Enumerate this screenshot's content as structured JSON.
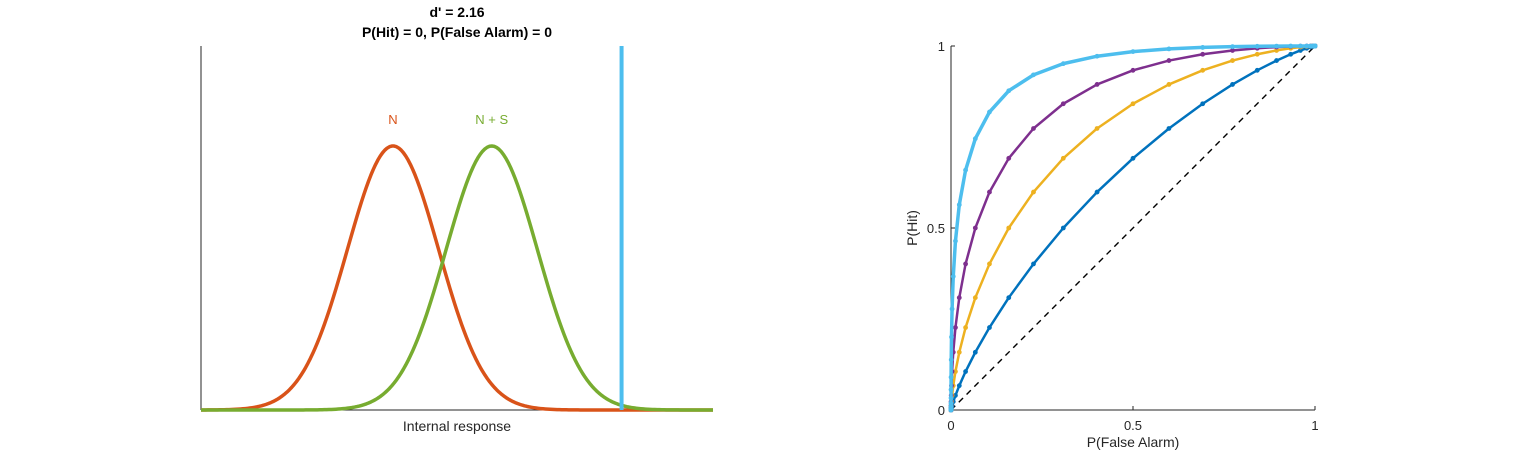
{
  "chart_data": [
    {
      "type": "line",
      "title": "d' =  2.16",
      "subtitle": "P(Hit) = 0, P(False Alarm) = 0",
      "xlabel": "Internal response",
      "ylabel": "",
      "ticks_visible": false,
      "criterion": {
        "x": 5.0,
        "color": "#4DBEEE"
      },
      "series": [
        {
          "name": "N",
          "mean": 0.0,
          "sd": 1.0,
          "color": "#D95319"
        },
        {
          "name": "N + S",
          "mean": 2.16,
          "sd": 1.0,
          "color": "#77AC30"
        }
      ],
      "xlim": [
        -4.2,
        7.0
      ],
      "ylim": [
        0,
        0.55
      ]
    },
    {
      "type": "line",
      "title": "",
      "xlabel": "P(False Alarm)",
      "ylabel": "P(Hit)",
      "xlim": [
        0,
        1
      ],
      "ylim": [
        0,
        1
      ],
      "xticks": [
        {
          "value": 0,
          "label": "0"
        },
        {
          "value": 0.5,
          "label": "0.5"
        },
        {
          "value": 1,
          "label": "1"
        }
      ],
      "yticks": [
        {
          "value": 0,
          "label": "0"
        },
        {
          "value": 0.5,
          "label": "0.5"
        },
        {
          "value": 1,
          "label": "1"
        }
      ],
      "chance_line": {
        "from": [
          0,
          0
        ],
        "to": [
          1,
          1
        ],
        "style": "dashed",
        "color": "#000000"
      },
      "series": [
        {
          "dprime": 0.5,
          "color": "#0072BD"
        },
        {
          "dprime": 1.0,
          "color": "#EDB120"
        },
        {
          "dprime": 1.5,
          "color": "#7E2F8E"
        },
        {
          "dprime": 2.16,
          "color": "#4DBEEE"
        }
      ]
    }
  ]
}
